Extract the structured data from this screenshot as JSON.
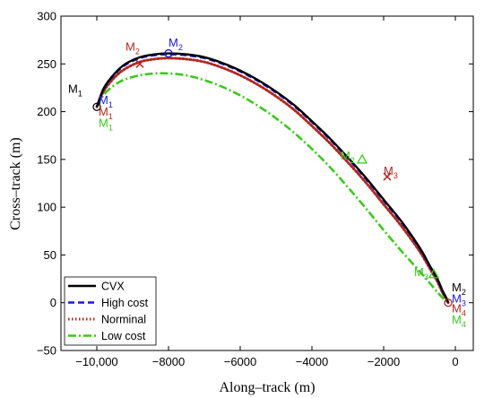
{
  "chart_data": {
    "type": "line",
    "xlabel": "Along–track (m)",
    "ylabel": "Cross–track (m)",
    "xlim": [
      -11000,
      500
    ],
    "ylim": [
      -50,
      300
    ],
    "xticks": [
      -10000,
      -8000,
      -6000,
      -4000,
      -2000,
      0
    ],
    "xtick_labels": [
      "−10,000",
      "−8000",
      "−6000",
      "−4000",
      "−2000",
      "0"
    ],
    "yticks": [
      -50,
      0,
      50,
      100,
      150,
      200,
      250,
      300
    ],
    "ytick_labels": [
      "−50",
      "0",
      "50",
      "100",
      "150",
      "200",
      "250",
      "300"
    ],
    "grid": false,
    "legend": {
      "placement": "bottom-left"
    },
    "series": [
      {
        "name": "CVX",
        "color": "#000000",
        "style": "solid",
        "x": [
          -10000,
          -9800,
          -9500,
          -9200,
          -8800,
          -8400,
          -8000,
          -7500,
          -7000,
          -6500,
          -6000,
          -5500,
          -5000,
          -4500,
          -4000,
          -3500,
          -3000,
          -2500,
          -2000,
          -1500,
          -1000,
          -700,
          -500,
          -350,
          -250,
          -200
        ],
        "y": [
          205,
          225,
          240,
          250,
          257,
          260,
          261,
          260,
          257,
          251,
          243,
          233,
          221,
          207,
          190,
          172,
          152,
          131,
          108,
          85,
          58,
          38,
          25,
          12,
          5,
          0
        ]
      },
      {
        "name": "High cost",
        "color": "#1a1adb",
        "style": "dashed",
        "x": [
          -10000,
          -9800,
          -9500,
          -9200,
          -8800,
          -8400,
          -8000,
          -7500,
          -7000,
          -6500,
          -6000,
          -5500,
          -5000,
          -4500,
          -4000,
          -3500,
          -3000,
          -2500,
          -2000,
          -1500,
          -1000,
          -700,
          -500,
          -350,
          -250,
          -200
        ],
        "y": [
          205,
          224,
          239,
          249,
          256,
          259,
          260,
          259,
          256,
          250,
          242,
          232,
          220,
          206,
          189,
          171,
          151,
          130,
          107,
          84,
          57,
          37,
          24,
          11,
          4,
          0
        ]
      },
      {
        "name": "Norminal",
        "color": "#b0281e",
        "style": "dotted",
        "x": [
          -10000,
          -9800,
          -9500,
          -9200,
          -8800,
          -8400,
          -8000,
          -7500,
          -7000,
          -6500,
          -6000,
          -5500,
          -5000,
          -4500,
          -4000,
          -3500,
          -3000,
          -2500,
          -2000,
          -1500,
          -1000,
          -700,
          -500,
          -350,
          -250,
          -200
        ],
        "y": [
          205,
          222,
          236,
          245,
          252,
          255,
          256,
          255,
          252,
          246,
          238,
          228,
          216,
          202,
          185,
          167,
          147,
          126,
          103,
          80,
          54,
          35,
          22,
          10,
          4,
          0
        ]
      },
      {
        "name": "Low cost",
        "color": "#3cc81e",
        "style": "dashdot",
        "x": [
          -10000,
          -9800,
          -9500,
          -9200,
          -8800,
          -8400,
          -8000,
          -7500,
          -7000,
          -6500,
          -6000,
          -5500,
          -5000,
          -4500,
          -4000,
          -3500,
          -3000,
          -2500,
          -2000,
          -1500,
          -1000,
          -700,
          -500,
          -350,
          -250,
          -200
        ],
        "y": [
          205,
          218,
          228,
          234,
          238,
          240,
          240,
          238,
          233,
          226,
          217,
          206,
          193,
          178,
          161,
          142,
          121,
          99,
          76,
          54,
          33,
          20,
          11,
          5,
          2,
          0
        ]
      }
    ],
    "markers": [
      {
        "label": "M",
        "sub": "1",
        "x": -10000,
        "y": 205,
        "color": "#000000",
        "symbol": "circle"
      },
      {
        "label": "M",
        "sub": "2",
        "x": -8000,
        "y": 261,
        "color": "#1a1adb",
        "symbol": "circle"
      },
      {
        "label": "M",
        "sub": "2",
        "x": -8800,
        "y": 250,
        "color": "#b0281e",
        "symbol": "cross"
      },
      {
        "label": "M",
        "sub": "2",
        "x": -2600,
        "y": 150,
        "color": "#3cc81e",
        "symbol": "triangle"
      },
      {
        "label": "M",
        "sub": "3",
        "x": -1900,
        "y": 132,
        "color": "#b0281e",
        "symbol": "cross"
      },
      {
        "label": "M",
        "sub": "3",
        "x": -600,
        "y": 30,
        "color": "#3cc81e",
        "symbol": "triangle"
      },
      {
        "label": "M",
        "sub": "4",
        "x": -200,
        "y": 0,
        "color": "#b0281e",
        "symbol": "circle"
      }
    ],
    "annotations": [
      {
        "label": "M",
        "sub": "1",
        "x": -10800,
        "y": 220,
        "color": "#000000"
      },
      {
        "label": "M",
        "sub": "1",
        "x": -9950,
        "y": 208,
        "color": "#1a1adb"
      },
      {
        "label": "M",
        "sub": "1",
        "x": -9950,
        "y": 196,
        "color": "#b0281e"
      },
      {
        "label": "M",
        "sub": "1",
        "x": -9950,
        "y": 184,
        "color": "#3cc81e"
      },
      {
        "label": "M",
        "sub": "2",
        "x": -9200,
        "y": 264,
        "color": "#b0281e"
      },
      {
        "label": "M",
        "sub": "2",
        "x": -8000,
        "y": 268,
        "color": "#1a1adb"
      },
      {
        "label": "M",
        "sub": "2",
        "x": -3200,
        "y": 150,
        "color": "#3cc81e"
      },
      {
        "label": "M",
        "sub": "3",
        "x": -2000,
        "y": 134,
        "color": "#b0281e"
      },
      {
        "label": "M",
        "sub": "3",
        "x": -1150,
        "y": 28,
        "color": "#3cc81e"
      },
      {
        "label": "M",
        "sub": "2",
        "x": -100,
        "y": 12,
        "color": "#000000"
      },
      {
        "label": "M",
        "sub": "3",
        "x": -100,
        "y": 0,
        "color": "#1a1adb"
      },
      {
        "label": "M",
        "sub": "4",
        "x": -100,
        "y": -10,
        "color": "#b0281e"
      },
      {
        "label": "M",
        "sub": "4",
        "x": -100,
        "y": -22,
        "color": "#3cc81e"
      }
    ]
  }
}
